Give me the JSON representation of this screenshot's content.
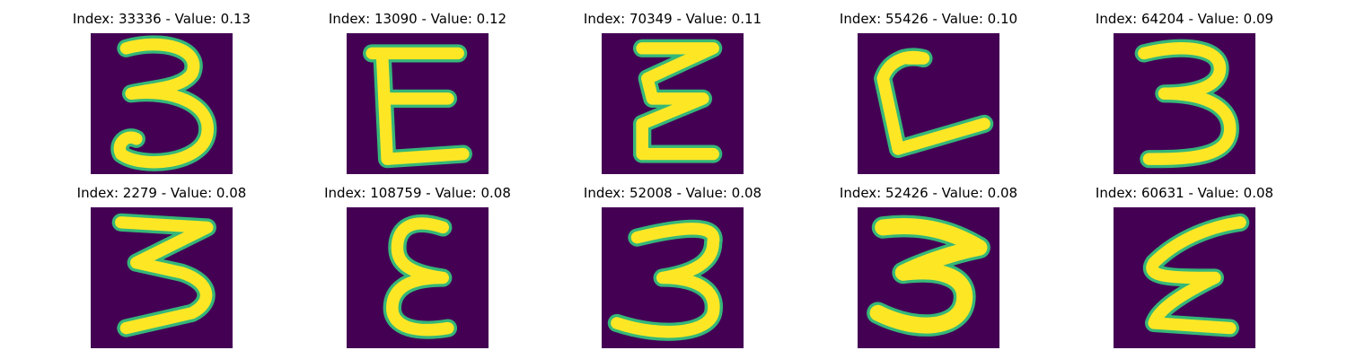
{
  "figure": {
    "background_color": "#440154",
    "stroke_color": "#fde725",
    "edge_color": "#35b779",
    "panels": [
      {
        "title": "Index: 33336 - Value: 0.13",
        "glyph": "three-round"
      },
      {
        "title": "Index: 13090 - Value: 0.12",
        "glyph": "epsilon-e"
      },
      {
        "title": "Index: 70349 - Value: 0.11",
        "glyph": "zigzag-e"
      },
      {
        "title": "Index: 55426 - Value: 0.10",
        "glyph": "open-l"
      },
      {
        "title": "Index: 64204 - Value: 0.09",
        "glyph": "three-flat"
      },
      {
        "title": "Index: 2279 - Value: 0.08",
        "glyph": "zigzag-three"
      },
      {
        "title": "Index: 108759 - Value: 0.08",
        "glyph": "epsilon-narrow"
      },
      {
        "title": "Index: 52008 - Value: 0.08",
        "glyph": "three-tilted"
      },
      {
        "title": "Index: 52426 - Value: 0.08",
        "glyph": "three-bold"
      },
      {
        "title": "Index: 60631 - Value: 0.08",
        "glyph": "zigzag-e-slant"
      }
    ]
  }
}
